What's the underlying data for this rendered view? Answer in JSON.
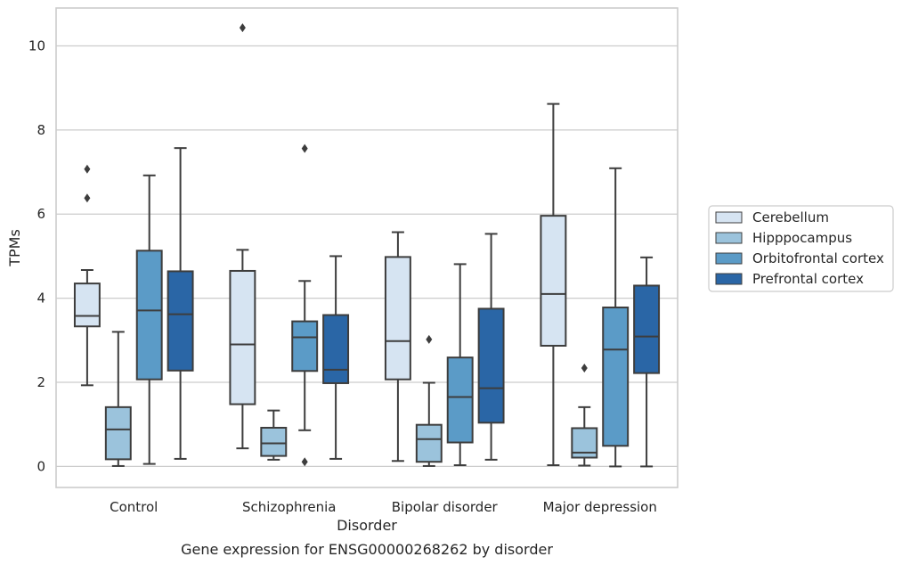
{
  "chart_data": {
    "type": "box",
    "caption": "Gene expression for ENSG00000268262 by disorder",
    "xlabel": "Disorder",
    "ylabel": "TPMs",
    "ylim": [
      -0.5,
      10.9
    ],
    "yticks": [
      0,
      2,
      4,
      6,
      8,
      10
    ],
    "grid": true,
    "legend_position": "right",
    "categories": [
      "Control",
      "Schizophrenia",
      "Bipolar disorder",
      "Major depression"
    ],
    "series": [
      {
        "name": "Cerebellum",
        "color": "#d6e4f2",
        "boxes": [
          {
            "min": 1.93,
            "q1": 3.33,
            "median": 3.58,
            "q3": 4.35,
            "max": 4.67,
            "fliers": [
              6.38,
              7.07
            ]
          },
          {
            "min": 0.43,
            "q1": 1.48,
            "median": 2.9,
            "q3": 4.65,
            "max": 5.15,
            "fliers": [
              10.43
            ]
          },
          {
            "min": 0.13,
            "q1": 2.07,
            "median": 2.98,
            "q3": 4.98,
            "max": 5.57,
            "fliers": []
          },
          {
            "min": 0.03,
            "q1": 2.87,
            "median": 4.1,
            "q3": 5.96,
            "max": 8.62,
            "fliers": []
          }
        ]
      },
      {
        "name": "Hipppocampus",
        "color": "#9bc3dc",
        "boxes": [
          {
            "min": 0.01,
            "q1": 0.17,
            "median": 0.88,
            "q3": 1.41,
            "max": 3.2,
            "fliers": []
          },
          {
            "min": 0.16,
            "q1": 0.25,
            "median": 0.55,
            "q3": 0.92,
            "max": 1.33,
            "fliers": []
          },
          {
            "min": 0.01,
            "q1": 0.11,
            "median": 0.65,
            "q3": 0.99,
            "max": 1.99,
            "fliers": [
              3.02
            ]
          },
          {
            "min": 0.02,
            "q1": 0.21,
            "median": 0.33,
            "q3": 0.91,
            "max": 1.41,
            "fliers": [
              2.34
            ]
          }
        ]
      },
      {
        "name": "Orbitofrontal cortex",
        "color": "#5b9bc7",
        "boxes": [
          {
            "min": 0.06,
            "q1": 2.07,
            "median": 3.71,
            "q3": 5.13,
            "max": 6.92,
            "fliers": []
          },
          {
            "min": 0.86,
            "q1": 2.27,
            "median": 3.07,
            "q3": 3.45,
            "max": 4.41,
            "fliers": [
              7.56,
              0.11
            ]
          },
          {
            "min": 0.03,
            "q1": 0.57,
            "median": 1.65,
            "q3": 2.59,
            "max": 4.81,
            "fliers": []
          },
          {
            "min": 0.0,
            "q1": 0.49,
            "median": 2.78,
            "q3": 3.78,
            "max": 7.09,
            "fliers": []
          }
        ]
      },
      {
        "name": "Prefrontal cortex",
        "color": "#2a66a6",
        "boxes": [
          {
            "min": 0.18,
            "q1": 2.28,
            "median": 3.62,
            "q3": 4.64,
            "max": 7.57,
            "fliers": []
          },
          {
            "min": 0.18,
            "q1": 1.98,
            "median": 2.3,
            "q3": 3.6,
            "max": 5.0,
            "fliers": []
          },
          {
            "min": 0.16,
            "q1": 1.04,
            "median": 1.86,
            "q3": 3.75,
            "max": 5.53,
            "fliers": []
          },
          {
            "min": 0.0,
            "q1": 2.22,
            "median": 3.09,
            "q3": 4.3,
            "max": 4.97,
            "fliers": []
          }
        ]
      }
    ]
  }
}
